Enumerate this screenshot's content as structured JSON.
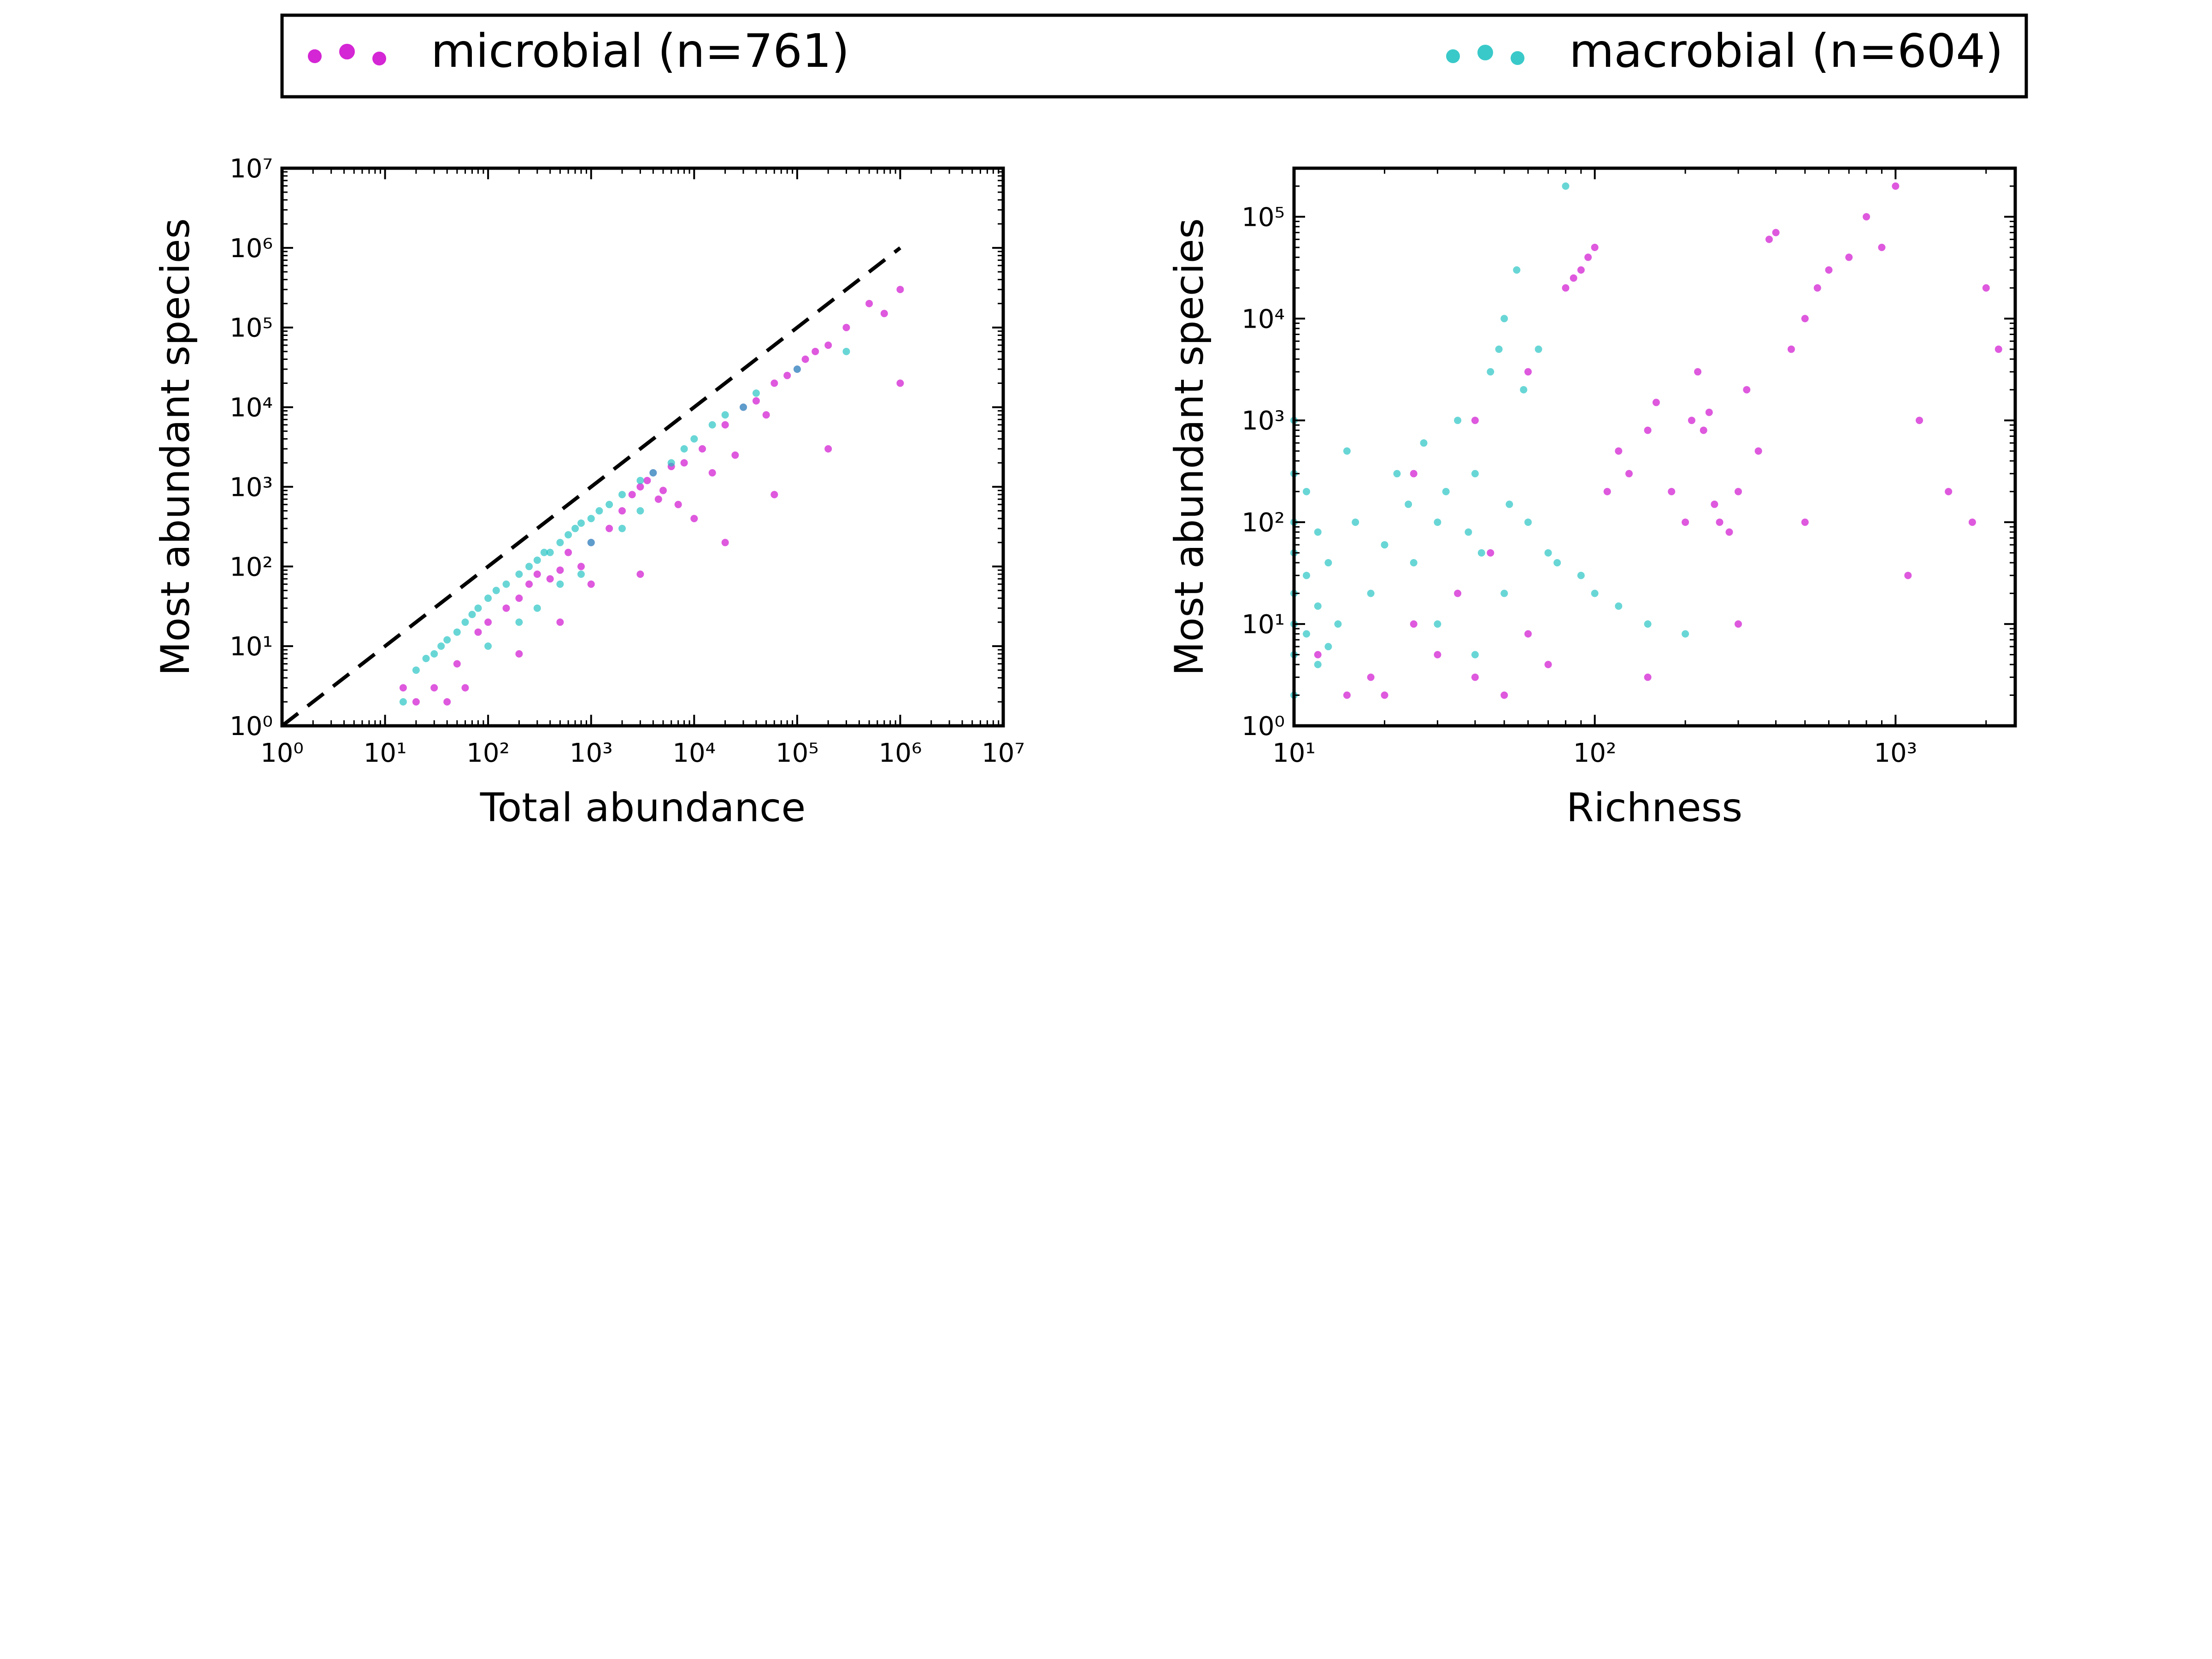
{
  "legend": {
    "entries": [
      {
        "label": "microbial (n=761)",
        "color": "#cc00cc"
      },
      {
        "label": "macrobial (n=604)",
        "color": "#18c0c0"
      }
    ]
  },
  "chart_data": [
    {
      "type": "scatter",
      "xlabel": "Total abundance",
      "ylabel": "Most abundant species",
      "xscale": "log",
      "yscale": "log",
      "xlim": [
        1,
        10000000
      ],
      "ylim": [
        1,
        10000000
      ],
      "xticks": [
        1,
        10,
        100,
        1000,
        10000,
        100000,
        1000000,
        10000000
      ],
      "yticks": [
        1,
        10,
        100,
        1000,
        10000,
        100000,
        1000000,
        10000000
      ],
      "reference_line": {
        "style": "dashed",
        "color": "#000000",
        "x": [
          1,
          1000000
        ],
        "y": [
          1,
          1000000
        ]
      },
      "series": [
        {
          "name": "microbial (n=761)",
          "color": "#cc00cc",
          "points": [
            [
              15,
              3
            ],
            [
              20,
              2
            ],
            [
              30,
              3
            ],
            [
              40,
              2
            ],
            [
              50,
              6
            ],
            [
              60,
              3
            ],
            [
              80,
              15
            ],
            [
              100,
              20
            ],
            [
              150,
              30
            ],
            [
              200,
              40
            ],
            [
              250,
              60
            ],
            [
              300,
              80
            ],
            [
              400,
              70
            ],
            [
              500,
              90
            ],
            [
              600,
              150
            ],
            [
              800,
              100
            ],
            [
              1000,
              200
            ],
            [
              1500,
              300
            ],
            [
              2000,
              500
            ],
            [
              2500,
              800
            ],
            [
              3000,
              1000
            ],
            [
              3500,
              1200
            ],
            [
              4000,
              1500
            ],
            [
              4500,
              700
            ],
            [
              5000,
              900
            ],
            [
              6000,
              1800
            ],
            [
              7000,
              600
            ],
            [
              8000,
              2000
            ],
            [
              10000,
              400
            ],
            [
              12000,
              3000
            ],
            [
              15000,
              1500
            ],
            [
              20000,
              6000
            ],
            [
              25000,
              2500
            ],
            [
              30000,
              10000
            ],
            [
              40000,
              12000
            ],
            [
              50000,
              8000
            ],
            [
              60000,
              20000
            ],
            [
              80000,
              25000
            ],
            [
              100000,
              30000
            ],
            [
              120000,
              40000
            ],
            [
              150000,
              50000
            ],
            [
              200000,
              60000
            ],
            [
              300000,
              100000
            ],
            [
              500000,
              200000
            ],
            [
              700000,
              150000
            ],
            [
              1000000,
              20000
            ],
            [
              200,
              8
            ],
            [
              500,
              20
            ],
            [
              1000,
              60
            ],
            [
              3000,
              80
            ],
            [
              20000,
              200
            ],
            [
              60000,
              800
            ],
            [
              200000,
              3000
            ],
            [
              1000000,
              300000
            ]
          ]
        },
        {
          "name": "macrobial (n=604)",
          "color": "#18c0c0",
          "points": [
            [
              15,
              2
            ],
            [
              20,
              5
            ],
            [
              25,
              7
            ],
            [
              30,
              8
            ],
            [
              35,
              10
            ],
            [
              40,
              12
            ],
            [
              50,
              15
            ],
            [
              60,
              20
            ],
            [
              70,
              25
            ],
            [
              80,
              30
            ],
            [
              100,
              40
            ],
            [
              120,
              50
            ],
            [
              150,
              60
            ],
            [
              200,
              80
            ],
            [
              250,
              100
            ],
            [
              300,
              120
            ],
            [
              350,
              150
            ],
            [
              400,
              150
            ],
            [
              500,
              200
            ],
            [
              600,
              250
            ],
            [
              700,
              300
            ],
            [
              800,
              350
            ],
            [
              1000,
              400
            ],
            [
              1200,
              500
            ],
            [
              1500,
              600
            ],
            [
              2000,
              800
            ],
            [
              3000,
              1200
            ],
            [
              4000,
              1500
            ],
            [
              6000,
              2000
            ],
            [
              8000,
              3000
            ],
            [
              10000,
              4000
            ],
            [
              15000,
              6000
            ],
            [
              20000,
              8000
            ],
            [
              30000,
              10000
            ],
            [
              40000,
              15000
            ],
            [
              100000,
              30000
            ],
            [
              300000,
              50000
            ],
            [
              300,
              30
            ],
            [
              200,
              20
            ],
            [
              100,
              10
            ],
            [
              500,
              60
            ],
            [
              800,
              80
            ],
            [
              1000,
              200
            ],
            [
              2000,
              300
            ],
            [
              3000,
              500
            ]
          ]
        }
      ]
    },
    {
      "type": "scatter",
      "xlabel": "Richness",
      "ylabel": "Most abundant species",
      "xscale": "log",
      "yscale": "log",
      "xlim": [
        10,
        2500
      ],
      "ylim": [
        1,
        300000
      ],
      "xticks": [
        10,
        100,
        1000
      ],
      "yticks": [
        1,
        10,
        100,
        1000,
        10000,
        100000
      ],
      "series": [
        {
          "name": "microbial (n=761)",
          "color": "#cc00cc",
          "points": [
            [
              12,
              5
            ],
            [
              15,
              2
            ],
            [
              18,
              3
            ],
            [
              20,
              2
            ],
            [
              25,
              10
            ],
            [
              30,
              5
            ],
            [
              35,
              20
            ],
            [
              40,
              3
            ],
            [
              45,
              50
            ],
            [
              50,
              2
            ],
            [
              60,
              8
            ],
            [
              70,
              4
            ],
            [
              80,
              20000
            ],
            [
              85,
              25000
            ],
            [
              90,
              30000
            ],
            [
              95,
              40000
            ],
            [
              100,
              50000
            ],
            [
              110,
              200
            ],
            [
              120,
              500
            ],
            [
              130,
              300
            ],
            [
              150,
              800
            ],
            [
              160,
              1500
            ],
            [
              180,
              200
            ],
            [
              200,
              100
            ],
            [
              210,
              1000
            ],
            [
              220,
              3000
            ],
            [
              230,
              800
            ],
            [
              240,
              1200
            ],
            [
              250,
              150
            ],
            [
              260,
              100
            ],
            [
              280,
              80
            ],
            [
              300,
              200
            ],
            [
              320,
              2000
            ],
            [
              350,
              500
            ],
            [
              380,
              60000
            ],
            [
              400,
              70000
            ],
            [
              450,
              5000
            ],
            [
              500,
              10000
            ],
            [
              550,
              20000
            ],
            [
              600,
              30000
            ],
            [
              700,
              40000
            ],
            [
              800,
              100000
            ],
            [
              900,
              50000
            ],
            [
              1000,
              200000
            ],
            [
              1100,
              30
            ],
            [
              1200,
              1000
            ],
            [
              1500,
              200
            ],
            [
              1800,
              100
            ],
            [
              2000,
              20000
            ],
            [
              2200,
              5000
            ],
            [
              25,
              300
            ],
            [
              40,
              1000
            ],
            [
              60,
              3000
            ],
            [
              300,
              10
            ],
            [
              150,
              3
            ],
            [
              500,
              100
            ]
          ]
        },
        {
          "name": "macrobial (n=604)",
          "color": "#18c0c0",
          "points": [
            [
              10,
              2
            ],
            [
              10,
              5
            ],
            [
              10,
              10
            ],
            [
              10,
              20
            ],
            [
              10,
              50
            ],
            [
              10,
              100
            ],
            [
              10,
              300
            ],
            [
              10,
              1000
            ],
            [
              11,
              8
            ],
            [
              11,
              30
            ],
            [
              11,
              200
            ],
            [
              12,
              4
            ],
            [
              12,
              15
            ],
            [
              12,
              80
            ],
            [
              13,
              6
            ],
            [
              13,
              40
            ],
            [
              14,
              10
            ],
            [
              15,
              500
            ],
            [
              16,
              100
            ],
            [
              18,
              20
            ],
            [
              20,
              60
            ],
            [
              22,
              300
            ],
            [
              24,
              150
            ],
            [
              25,
              40
            ],
            [
              27,
              600
            ],
            [
              30,
              100
            ],
            [
              32,
              200
            ],
            [
              35,
              1000
            ],
            [
              38,
              80
            ],
            [
              40,
              300
            ],
            [
              42,
              50
            ],
            [
              45,
              3000
            ],
            [
              48,
              5000
            ],
            [
              50,
              10000
            ],
            [
              52,
              150
            ],
            [
              55,
              30000
            ],
            [
              58,
              2000
            ],
            [
              60,
              100
            ],
            [
              65,
              5000
            ],
            [
              70,
              50
            ],
            [
              75,
              40
            ],
            [
              80,
              200000
            ],
            [
              90,
              30
            ],
            [
              100,
              20
            ],
            [
              120,
              15
            ],
            [
              150,
              10
            ],
            [
              200,
              8
            ],
            [
              30,
              10
            ],
            [
              50,
              20
            ],
            [
              40,
              5
            ]
          ]
        }
      ]
    }
  ]
}
